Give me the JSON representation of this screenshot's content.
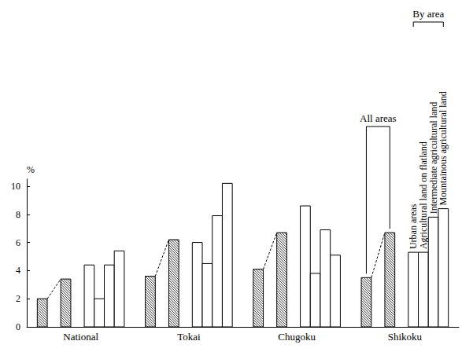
{
  "chart_data": {
    "type": "bar",
    "ylabel": "%",
    "categories": [
      "National",
      "Tokai",
      "Chugoku",
      "Shikoku"
    ],
    "series": [
      {
        "color": "#ffffff",
        "marker": "hatch",
        "values": [
          2.0,
          3.6,
          4.1,
          3.5
        ]
      },
      {
        "color": "#ffffff",
        "marker": "hatch",
        "values": [
          3.4,
          6.2,
          6.7,
          6.7
        ]
      },
      {
        "name": "Urban areas",
        "color": "#ffffff",
        "values": [
          4.4,
          6.0,
          8.6,
          5.3
        ]
      },
      {
        "name": "Agricultural land on flatland",
        "color": "#ffffff",
        "values": [
          2.0,
          4.5,
          3.8,
          5.3
        ]
      },
      {
        "name": "Intermediate agricultural land",
        "color": "#ffffff",
        "values": [
          4.4,
          7.9,
          6.9,
          7.8
        ]
      },
      {
        "name": "Mountainous agricultural land",
        "color": "#ffffff",
        "values": [
          5.4,
          10.2,
          5.1,
          8.4
        ]
      }
    ],
    "annotations": [
      "All areas",
      "By area"
    ],
    "ylim": [
      0,
      10.5
    ],
    "yticks": [
      0,
      2,
      4,
      6,
      8,
      10
    ],
    "grid": false
  }
}
